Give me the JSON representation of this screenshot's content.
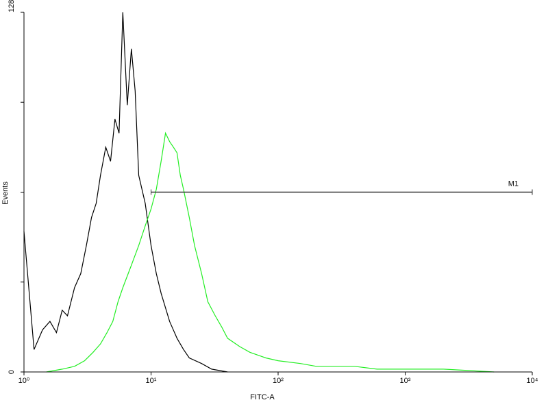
{
  "chart_data": {
    "type": "line",
    "xscale": "log",
    "x_label": "FITC-A",
    "y_label": "Events",
    "xlim": [
      1,
      10000
    ],
    "ylim": [
      0,
      128
    ],
    "xticks": [
      {
        "value": 1,
        "label": "10⁰"
      },
      {
        "value": 10,
        "label": "10¹"
      },
      {
        "value": 100,
        "label": "10²"
      },
      {
        "value": 1000,
        "label": "10³"
      },
      {
        "value": 10000,
        "label": "10⁴"
      }
    ],
    "yticks": [
      0,
      128
    ],
    "minor_yticks": [
      32,
      64,
      96
    ],
    "series": [
      {
        "color": "#000000",
        "x": [
          1,
          1.2,
          1.4,
          1.6,
          1.8,
          2,
          2.2,
          2.5,
          2.8,
          3.1,
          3.4,
          3.7,
          4,
          4.4,
          4.8,
          5.2,
          5.6,
          6,
          6.5,
          7,
          7.5,
          8,
          9,
          10,
          11,
          12,
          14,
          16,
          18,
          20,
          25,
          30,
          40
        ],
        "values": [
          50,
          8,
          15,
          18,
          14,
          22,
          20,
          30,
          35,
          45,
          55,
          60,
          70,
          80,
          75,
          90,
          85,
          128,
          95,
          115,
          100,
          70,
          60,
          45,
          35,
          28,
          18,
          12,
          8,
          5,
          3,
          1,
          0
        ]
      },
      {
        "color": "#22ee22",
        "x": [
          1.5,
          2,
          2.5,
          3,
          3.5,
          4,
          4.5,
          5,
          5.5,
          6,
          7,
          8,
          9,
          10,
          11,
          12,
          13,
          14,
          15,
          16,
          17,
          18,
          20,
          22,
          25,
          28,
          32,
          36,
          40,
          50,
          60,
          80,
          100,
          150,
          200,
          300,
          400,
          600,
          1000,
          2000,
          5000
        ],
        "values": [
          0,
          1,
          2,
          4,
          7,
          10,
          14,
          18,
          25,
          30,
          38,
          45,
          52,
          58,
          65,
          75,
          85,
          82,
          80,
          78,
          70,
          65,
          55,
          45,
          35,
          25,
          20,
          16,
          12,
          9,
          7,
          5,
          4,
          3,
          2,
          2,
          2,
          1,
          1,
          1,
          0
        ]
      }
    ],
    "annotations": [
      {
        "label": "M1",
        "x": [
          10,
          10000
        ],
        "y": 64
      }
    ]
  }
}
